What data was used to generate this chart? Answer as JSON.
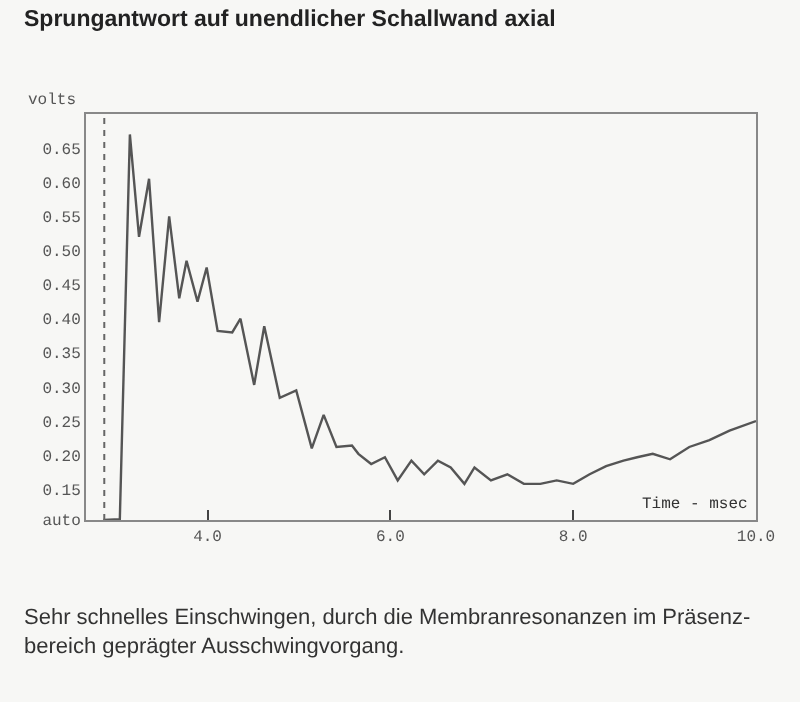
{
  "chart_data": {
    "type": "line",
    "title": "Sprungantwort auf unendlicher Schallwand axial",
    "xlabel": "Time - msec",
    "ylabel": "volts",
    "annotations": [
      "Sehr schnelles Einschwingen, durch die Membranresonanzen im Präsenz-\nbereich geprägter Ausschwingvorgang."
    ],
    "x": [
      2.86,
      3.04,
      3.15,
      3.25,
      3.36,
      3.47,
      3.58,
      3.69,
      3.77,
      3.89,
      3.99,
      4.11,
      4.27,
      4.36,
      4.51,
      4.62,
      4.79,
      4.97,
      5.14,
      5.27,
      5.41,
      5.58,
      5.65,
      5.79,
      5.94,
      6.08,
      6.23,
      6.37,
      6.52,
      6.66,
      6.81,
      6.92,
      7.1,
      7.28,
      7.46,
      7.64,
      7.82,
      8.0,
      8.18,
      8.36,
      8.55,
      8.7,
      8.87,
      9.06,
      9.27,
      9.49,
      9.71,
      10.0
    ],
    "series": [
      {
        "color": "#555555",
        "values": [
          0.105,
          0.106,
          0.67,
          0.52,
          0.605,
          0.395,
          0.55,
          0.43,
          0.485,
          0.425,
          0.475,
          0.382,
          0.38,
          0.4,
          0.303,
          0.389,
          0.284,
          0.295,
          0.21,
          0.259,
          0.212,
          0.214,
          0.202,
          0.187,
          0.197,
          0.163,
          0.192,
          0.172,
          0.192,
          0.182,
          0.158,
          0.182,
          0.163,
          0.172,
          0.158,
          0.158,
          0.163,
          0.158,
          0.172,
          0.184,
          0.192,
          0.197,
          0.202,
          0.194,
          0.212,
          0.222,
          0.236,
          0.25
        ]
      }
    ],
    "xlim": [
      2.67,
      10.0
    ],
    "ylim": [
      0.105,
      0.7
    ],
    "xticks": [
      {
        "value": 4,
        "label": "4.0"
      },
      {
        "value": 6,
        "label": "6.0"
      },
      {
        "value": 8,
        "label": "8.0"
      },
      {
        "value": 10,
        "label": "10.0"
      }
    ],
    "yticks": [
      {
        "value": 0.106,
        "label": "auto"
      },
      0.15,
      {
        "value": 0.2,
        "label": "0.20"
      },
      0.25,
      {
        "value": 0.3,
        "label": "0.30"
      },
      0.35,
      {
        "value": 0.4,
        "label": "0.40"
      },
      0.45,
      {
        "value": 0.5,
        "label": "0.50"
      },
      0.55,
      {
        "value": 0.6,
        "label": "0.60"
      },
      0.65
    ],
    "ref_lines": [
      {
        "axis": "x",
        "value": 2.87,
        "color": "#666666",
        "line_style": "dotted"
      }
    ],
    "grid": false,
    "marker": "none",
    "line_style": "solid"
  }
}
